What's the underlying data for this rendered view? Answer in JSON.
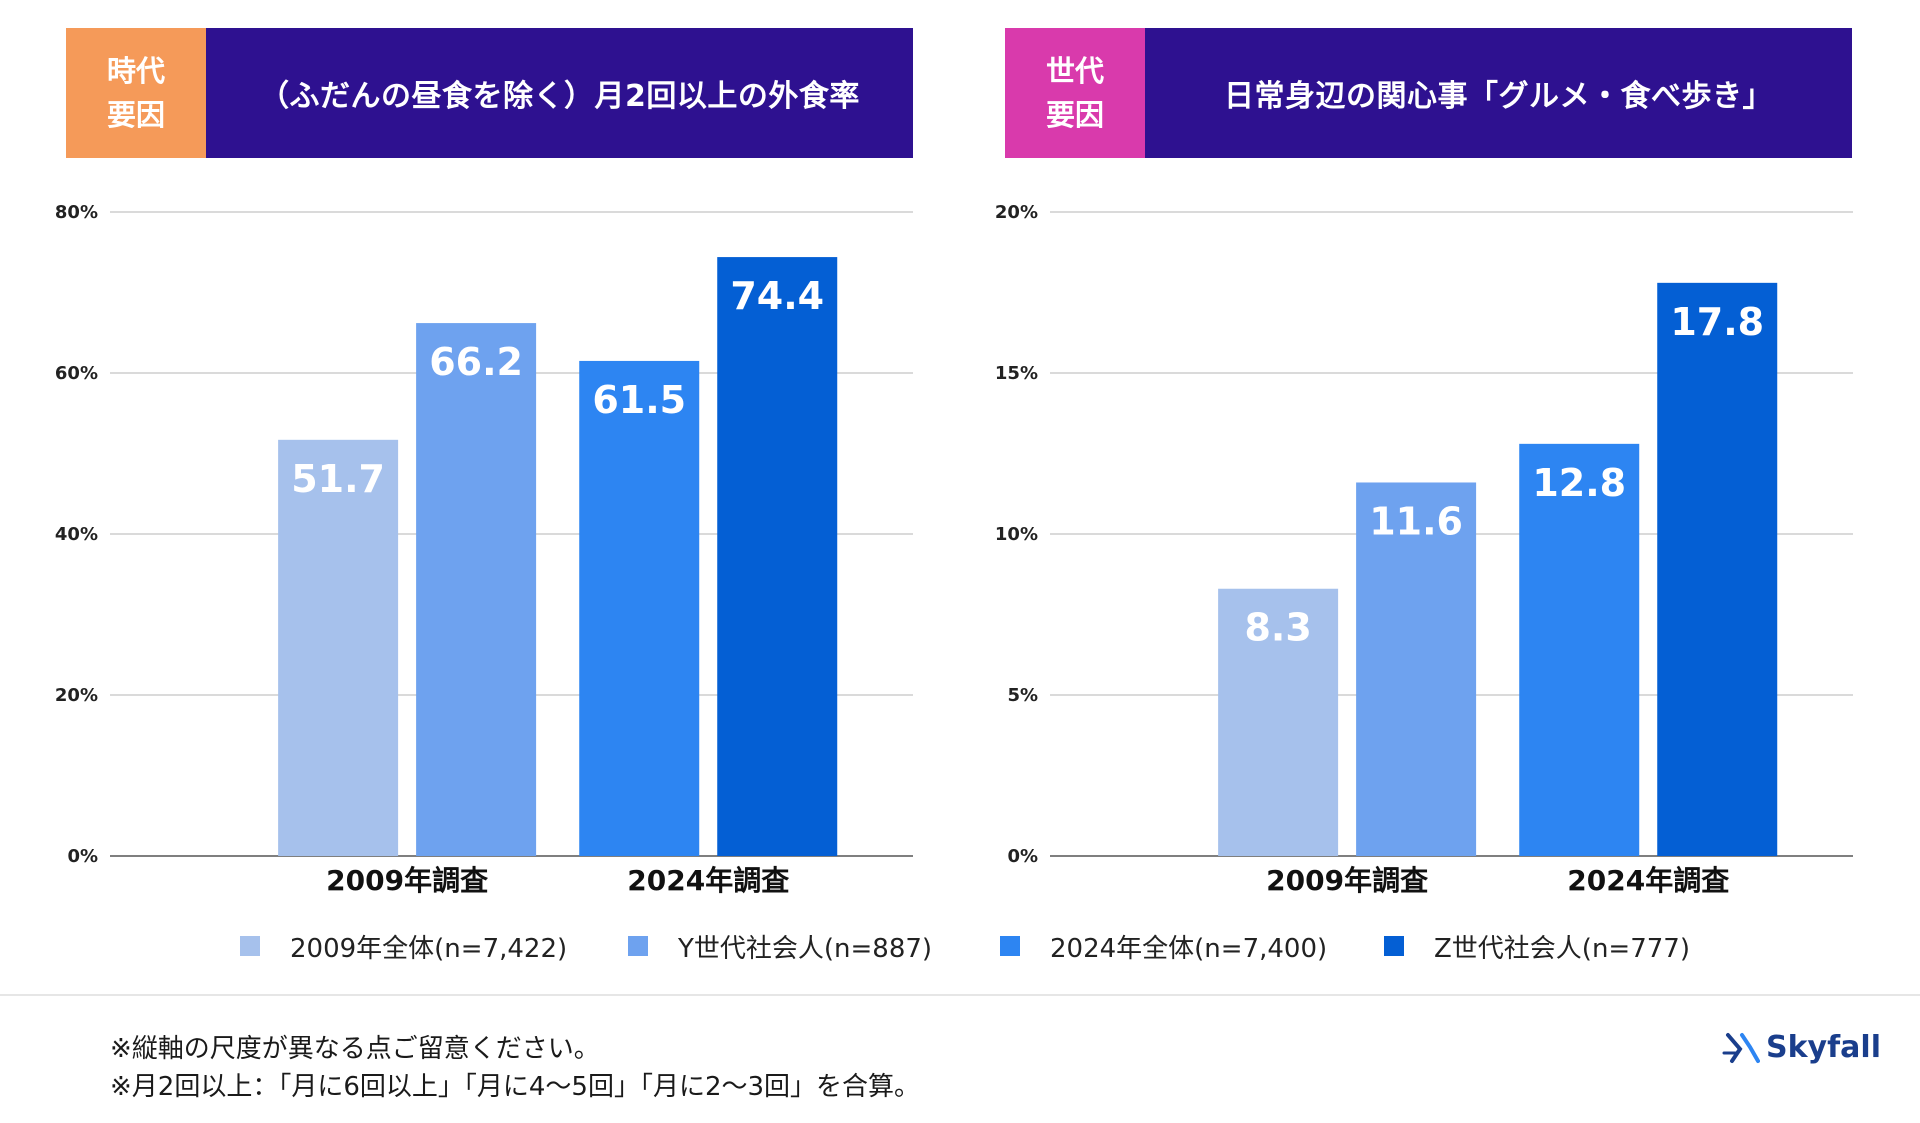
{
  "left_panel": {
    "tag_lines": [
      "時代",
      "要因"
    ],
    "title": "（ふだんの昼食を除く）月2回以上の外食率",
    "tag_color": "#f59a59"
  },
  "right_panel": {
    "tag_lines": [
      "世代",
      "要因"
    ],
    "title": "日常身辺の関心事「グルメ・食べ歩き」",
    "tag_color": "#d93aac"
  },
  "header_color": "#2e1190",
  "series_colors": [
    "#a6c1ec",
    "#6ea2ef",
    "#2d85f2",
    "#045fd4"
  ],
  "chart_data": [
    {
      "type": "bar",
      "title": "（ふだんの昼食を除く）月2回以上の外食率",
      "categories": [
        "2009年調査",
        "2024年調査"
      ],
      "series": [
        {
          "name": "2009年全体(n=7,422)",
          "values": [
            51.7,
            null
          ]
        },
        {
          "name": "Y世代社会人(n=887)",
          "values": [
            66.2,
            null
          ]
        },
        {
          "name": "2024年全体(n=7,400)",
          "values": [
            null,
            61.5
          ]
        },
        {
          "name": "Z世代社会人(n=777)",
          "values": [
            null,
            74.4
          ]
        }
      ],
      "ylim": [
        0,
        80
      ],
      "yticks": [
        0,
        20,
        40,
        60,
        80
      ],
      "ytick_labels": [
        "0%",
        "20%",
        "40%",
        "60%",
        "80%"
      ],
      "grid": true
    },
    {
      "type": "bar",
      "title": "日常身辺の関心事「グルメ・食べ歩き」",
      "categories": [
        "2009年調査",
        "2024年調査"
      ],
      "series": [
        {
          "name": "2009年全体(n=7,422)",
          "values": [
            8.3,
            null
          ]
        },
        {
          "name": "Y世代社会人(n=887)",
          "values": [
            11.6,
            null
          ]
        },
        {
          "name": "2024年全体(n=7,400)",
          "values": [
            null,
            12.8
          ]
        },
        {
          "name": "Z世代社会人(n=777)",
          "values": [
            null,
            17.8
          ]
        }
      ],
      "ylim": [
        0,
        20
      ],
      "yticks": [
        0,
        5,
        10,
        15,
        20
      ],
      "ytick_labels": [
        "0%",
        "5%",
        "10%",
        "15%",
        "20%"
      ],
      "grid": true
    }
  ],
  "legend": [
    {
      "label": "2009年全体(n=7,422)",
      "color": "#a6c1ec"
    },
    {
      "label": "Y世代社会人(n=887)",
      "color": "#6ea2ef"
    },
    {
      "label": "2024年全体(n=7,400)",
      "color": "#2d85f2"
    },
    {
      "label": "Z世代社会人(n=777)",
      "color": "#045fd4"
    }
  ],
  "notes": [
    "※縦軸の尺度が異なる点ご留意ください。",
    "※月2回以上：「月に6回以上」「月に4〜5回」「月に2〜3回」を合算。"
  ],
  "logo": {
    "text": "Skyfall",
    "icon": "skyfall-logo-icon"
  }
}
